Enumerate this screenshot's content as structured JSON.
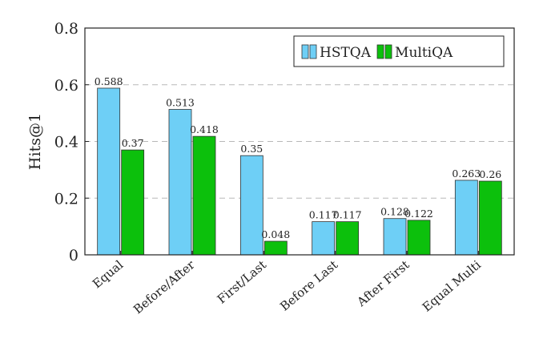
{
  "chart_data": {
    "type": "bar",
    "title": "",
    "xlabel": "",
    "ylabel": "Hits@1",
    "ylim": [
      0,
      0.8
    ],
    "yticks": [
      0,
      0.2,
      0.4,
      0.6,
      0.8
    ],
    "yticklabels": [
      "0",
      "0.2",
      "0.4",
      "0.6",
      "0.8"
    ],
    "grid": "horizontal dashed",
    "legend_position": "top-right",
    "categories": [
      "Equal",
      "Before/After",
      "First/Last",
      "Before Last",
      "After First",
      "Equal Multi"
    ],
    "series": [
      {
        "name": "HSTQA",
        "color": "#6ecff6",
        "values": [
          0.588,
          0.513,
          0.35,
          0.117,
          0.128,
          0.263
        ],
        "labels": [
          "0.588",
          "0.513",
          "0.35",
          "0.117",
          "0.128",
          "0.263"
        ]
      },
      {
        "name": "MultiQA",
        "color": "#0cc00c",
        "values": [
          0.37,
          0.418,
          0.048,
          0.117,
          0.122,
          0.26
        ],
        "labels": [
          "0.37",
          "0.418",
          "0.048",
          "0.117",
          "0.122",
          "0.26"
        ]
      }
    ]
  }
}
